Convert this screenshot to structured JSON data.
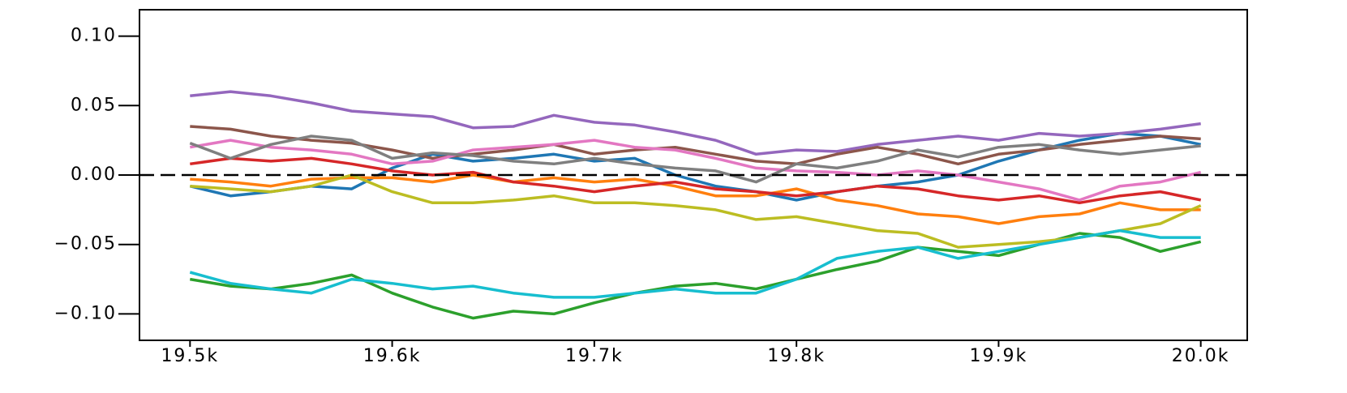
{
  "chart_data": {
    "type": "line",
    "x": [
      19500,
      19520,
      19540,
      19560,
      19580,
      19600,
      19620,
      19640,
      19660,
      19680,
      19700,
      19720,
      19740,
      19760,
      19780,
      19800,
      19820,
      19840,
      19860,
      19880,
      19900,
      19920,
      19940,
      19960,
      19980,
      20000
    ],
    "xlim": [
      19475,
      20023
    ],
    "xticks": [
      {
        "value": 19500,
        "label": "19.5k"
      },
      {
        "value": 19600,
        "label": "19.6k"
      },
      {
        "value": 19700,
        "label": "19.7k"
      },
      {
        "value": 19800,
        "label": "19.8k"
      },
      {
        "value": 19900,
        "label": "19.9k"
      },
      {
        "value": 20000,
        "label": "20.0k"
      }
    ],
    "ylim": [
      -0.119,
      0.119
    ],
    "yticks": [
      {
        "value": -0.1,
        "label": "−0.10"
      },
      {
        "value": -0.05,
        "label": "−0.05"
      },
      {
        "value": 0,
        "label": "0.00"
      },
      0.05,
      {
        "value": 0.1,
        "label": "0.10"
      }
    ],
    "hline": 0,
    "grid": false,
    "series": [
      {
        "color": "#1f77b4",
        "values": [
          -0.008,
          -0.015,
          -0.012,
          -0.008,
          -0.01,
          0.005,
          0.015,
          0.01,
          0.012,
          0.015,
          0.01,
          0.012,
          0.0,
          -0.008,
          -0.012,
          -0.018,
          -0.012,
          -0.008,
          -0.005,
          0.0,
          0.01,
          0.018,
          0.025,
          0.03,
          0.028,
          0.022
        ]
      },
      {
        "color": "#ff7f0e",
        "values": [
          -0.003,
          -0.005,
          -0.008,
          -0.003,
          -0.002,
          -0.002,
          -0.005,
          0.0,
          -0.005,
          -0.002,
          -0.005,
          -0.003,
          -0.008,
          -0.015,
          -0.015,
          -0.01,
          -0.018,
          -0.022,
          -0.028,
          -0.03,
          -0.035,
          -0.03,
          -0.028,
          -0.02,
          -0.025,
          -0.025
        ]
      },
      {
        "color": "#2ca02c",
        "values": [
          -0.075,
          -0.08,
          -0.082,
          -0.078,
          -0.072,
          -0.085,
          -0.095,
          -0.103,
          -0.098,
          -0.1,
          -0.092,
          -0.085,
          -0.08,
          -0.078,
          -0.082,
          -0.075,
          -0.068,
          -0.062,
          -0.052,
          -0.055,
          -0.058,
          -0.05,
          -0.042,
          -0.045,
          -0.055,
          -0.048
        ]
      },
      {
        "color": "#d62728",
        "values": [
          0.008,
          0.012,
          0.01,
          0.012,
          0.008,
          0.003,
          0.0,
          0.002,
          -0.005,
          -0.008,
          -0.012,
          -0.008,
          -0.005,
          -0.01,
          -0.012,
          -0.015,
          -0.012,
          -0.008,
          -0.01,
          -0.015,
          -0.018,
          -0.015,
          -0.02,
          -0.015,
          -0.012,
          -0.018
        ]
      },
      {
        "color": "#9467bd",
        "values": [
          0.057,
          0.06,
          0.057,
          0.052,
          0.046,
          0.044,
          0.042,
          0.034,
          0.035,
          0.043,
          0.038,
          0.036,
          0.031,
          0.025,
          0.015,
          0.018,
          0.017,
          0.022,
          0.025,
          0.028,
          0.025,
          0.03,
          0.028,
          0.03,
          0.033,
          0.037
        ]
      },
      {
        "color": "#8c564b",
        "values": [
          0.035,
          0.033,
          0.028,
          0.025,
          0.023,
          0.018,
          0.012,
          0.015,
          0.018,
          0.022,
          0.015,
          0.018,
          0.02,
          0.015,
          0.01,
          0.008,
          0.015,
          0.02,
          0.015,
          0.008,
          0.015,
          0.018,
          0.022,
          0.025,
          0.028,
          0.026
        ]
      },
      {
        "color": "#e377c2",
        "values": [
          0.02,
          0.025,
          0.02,
          0.018,
          0.015,
          0.008,
          0.01,
          0.018,
          0.02,
          0.022,
          0.025,
          0.02,
          0.018,
          0.012,
          0.005,
          0.003,
          0.002,
          0.0,
          0.003,
          0.0,
          -0.005,
          -0.01,
          -0.018,
          -0.008,
          -0.005,
          0.002
        ]
      },
      {
        "color": "#7f7f7f",
        "values": [
          0.023,
          0.012,
          0.022,
          0.028,
          0.025,
          0.012,
          0.016,
          0.014,
          0.01,
          0.008,
          0.012,
          0.008,
          0.005,
          0.003,
          -0.005,
          0.008,
          0.005,
          0.01,
          0.018,
          0.013,
          0.02,
          0.022,
          0.018,
          0.015,
          0.018,
          0.021
        ]
      },
      {
        "color": "#bcbd22",
        "values": [
          -0.008,
          -0.01,
          -0.012,
          -0.008,
          0.0,
          -0.012,
          -0.02,
          -0.02,
          -0.018,
          -0.015,
          -0.02,
          -0.02,
          -0.022,
          -0.025,
          -0.032,
          -0.03,
          -0.035,
          -0.04,
          -0.042,
          -0.052,
          -0.05,
          -0.048,
          -0.045,
          -0.04,
          -0.035,
          -0.022
        ]
      },
      {
        "color": "#17becf",
        "values": [
          -0.07,
          -0.078,
          -0.082,
          -0.085,
          -0.075,
          -0.078,
          -0.082,
          -0.08,
          -0.085,
          -0.088,
          -0.088,
          -0.085,
          -0.082,
          -0.085,
          -0.085,
          -0.075,
          -0.06,
          -0.055,
          -0.052,
          -0.06,
          -0.055,
          -0.05,
          -0.045,
          -0.04,
          -0.045,
          -0.045
        ]
      }
    ]
  }
}
